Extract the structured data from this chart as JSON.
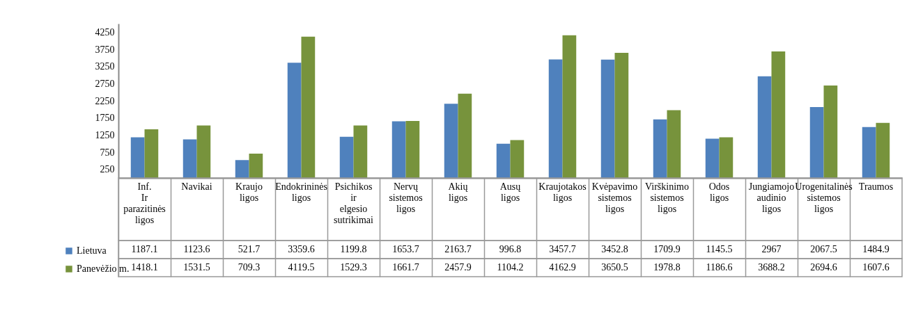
{
  "chart_data": {
    "type": "bar",
    "categories": [
      "Inf. Ir parazitinės ligos",
      "Navikai",
      "Kraujo ligos",
      "Endokrininės ligos",
      "Psichikos ir elgesio sutrikimai",
      "Nervų sistemos ligos",
      "Akių ligos",
      "Ausų ligos",
      "Kraujotakos ligos",
      "Kvėpavimo sistemos ligos",
      "Virškinimo sistemos ligos",
      "Odos ligos",
      "Jungiamojo audinio ligos",
      "Urogenitalinės sistemos ligos",
      "Traumos"
    ],
    "series": [
      {
        "name": "Lietuva",
        "color": "#4f81bd",
        "values": [
          1187.1,
          1123.6,
          521.7,
          3359.6,
          1199.8,
          1653.7,
          2163.7,
          996.8,
          3457.7,
          3452.8,
          1709.9,
          1145.5,
          2967,
          2067.5,
          1484.9
        ]
      },
      {
        "name": "Panevėžio m.",
        "color": "#77933c",
        "values": [
          1418.1,
          1531.5,
          709.3,
          4119.5,
          1529.3,
          1661.7,
          2457.9,
          1104.2,
          4162.9,
          3650.5,
          1978.8,
          1186.6,
          3688.2,
          2694.6,
          1607.6
        ]
      }
    ],
    "ylim": [
      0,
      4500
    ],
    "yticks": [
      250,
      750,
      1250,
      1750,
      2250,
      2750,
      3250,
      3750,
      4250
    ],
    "data_labels": true,
    "legend": "bottom left"
  }
}
